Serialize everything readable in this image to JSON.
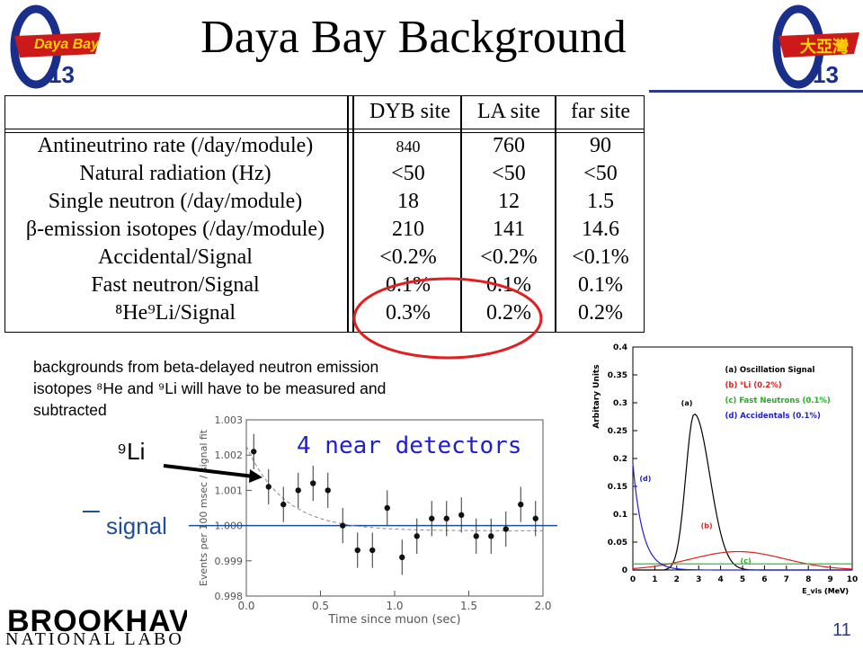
{
  "title": "Daya Bay Background",
  "logo_left": {
    "text": "Daya Bay",
    "sub": "13"
  },
  "logo_right": {
    "text": "大亞灣",
    "sub": "13"
  },
  "table": {
    "headers": [
      "DYB site",
      "LA site",
      "far site"
    ],
    "rows": [
      {
        "label": "Antineutrino rate (/day/module)",
        "v": [
          "840",
          "760",
          "90"
        ]
      },
      {
        "label": "Natural radiation (Hz)",
        "v": [
          "<50",
          "<50",
          "<50"
        ]
      },
      {
        "label": "Single neutron (/day/module)",
        "v": [
          "18",
          "12",
          "1.5"
        ]
      },
      {
        "label": "β-emission isotopes (/day/module)",
        "v": [
          "210",
          "141",
          "14.6"
        ]
      },
      {
        "label": "Accidental/Signal",
        "v": [
          "<0.2%",
          "<0.2%",
          "<0.1%"
        ]
      },
      {
        "label": "Fast neutron/Signal",
        "v": [
          "0.1%",
          "0.1%",
          "0.1%"
        ]
      },
      {
        "label": "⁸He⁹Li/Signal",
        "v": [
          "0.3%",
          "0.2%",
          "0.2%"
        ]
      }
    ]
  },
  "note_line1": "backgrounds from beta-delayed neutron emission",
  "note_line2": "isotopes ⁸He and ⁹Li will have to be measured and",
  "note_line3": "subtracted",
  "label_li9": "⁹Li",
  "label_signal": " signal",
  "label_near": "4 near detectors",
  "page_number": "11",
  "footer_logo_line1": "BROOKHAV",
  "footer_logo_line2": "NATIONAL LABORA",
  "chart_data": [
    {
      "type": "scatter",
      "xlabel": "Time since muon (sec)",
      "ylabel": "Events per 100 msec / signal fit",
      "xlim": [
        0.0,
        2.0
      ],
      "ylim": [
        0.998,
        1.003
      ],
      "xticks": [
        "0.0",
        "0.5",
        "1.0",
        "1.5",
        "2.0"
      ],
      "yticks": [
        "0.998",
        "0.999",
        "1.000",
        "1.001",
        "1.002",
        "1.003"
      ],
      "x": [
        0.05,
        0.15,
        0.25,
        0.35,
        0.45,
        0.55,
        0.65,
        0.75,
        0.85,
        0.95,
        1.05,
        1.15,
        1.25,
        1.35,
        1.45,
        1.55,
        1.65,
        1.75,
        1.85,
        1.95
      ],
      "y": [
        1.0021,
        1.0011,
        1.0006,
        1.001,
        1.0012,
        1.001,
        1.0,
        0.9993,
        0.9993,
        1.0005,
        0.9991,
        0.9997,
        1.0002,
        1.0002,
        1.0003,
        0.9997,
        0.9997,
        0.9999,
        1.0006,
        1.0002
      ],
      "err": 0.0005
    },
    {
      "type": "line",
      "ylabel": "Arbitary Units",
      "xlabel": "E_vis (MeV)",
      "xlim": [
        0,
        10
      ],
      "ylim": [
        0,
        0.4
      ],
      "xticks": [
        "0",
        "1",
        "2",
        "3",
        "4",
        "5",
        "6",
        "7",
        "8",
        "9",
        "10"
      ],
      "yticks": [
        "0",
        "0.05",
        "0.1",
        "0.15",
        "0.2",
        "0.25",
        "0.3",
        "0.35",
        "0.4"
      ],
      "legend": [
        {
          "name": "(a) Oscillation Signal",
          "color": "#000000"
        },
        {
          "name": "(b) ⁹Li (0.2%)",
          "color": "#e02020"
        },
        {
          "name": "(c) Fast Neutrons (0.1%)",
          "color": "#20b020"
        },
        {
          "name": "(d) Accidentals (0.1%)",
          "color": "#2020d0"
        }
      ],
      "curve_labels": [
        "(a)",
        "(b)",
        "(c)",
        "(d)"
      ],
      "x_unit": "(MeV)"
    }
  ],
  "colors": {
    "accent": "#2a3a8c",
    "ellipse": "#e02020",
    "signal": "#1f4e9a",
    "near": "#2020d0"
  }
}
